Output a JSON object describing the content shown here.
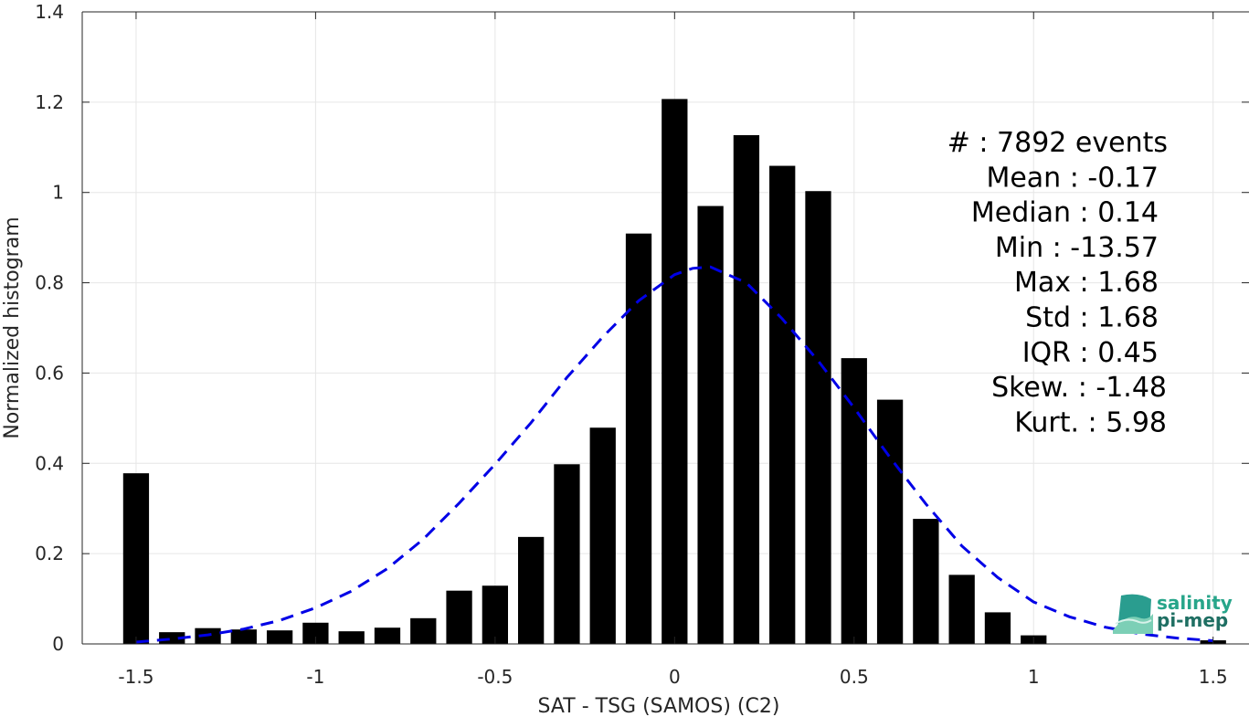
{
  "chart_data": {
    "type": "bar",
    "xlabel": "SAT - TSG (SAMOS) (C2)",
    "ylabel": "Normalized histogram",
    "xlim": [
      -1.65,
      1.6
    ],
    "ylim": [
      0,
      1.4
    ],
    "xticks": [
      -1.5,
      -1,
      -0.5,
      0,
      0.5,
      1,
      1.5
    ],
    "xtick_labels": [
      "-1.5",
      "-1",
      "-0.5",
      "0",
      "0.5",
      "1",
      "1.5"
    ],
    "yticks": [
      0,
      0.2,
      0.4,
      0.6,
      0.8,
      1,
      1.2,
      1.4
    ],
    "ytick_labels": [
      "0",
      "0.2",
      "0.4",
      "0.6",
      "0.8",
      "1",
      "1.2",
      "1.4"
    ],
    "grid": true,
    "bin_centers": [
      -1.5,
      -1.4,
      -1.3,
      -1.2,
      -1.1,
      -1.0,
      -0.9,
      -0.8,
      -0.7,
      -0.6,
      -0.5,
      -0.4,
      -0.3,
      -0.2,
      -0.1,
      0.0,
      0.1,
      0.2,
      0.3,
      0.4,
      0.5,
      0.6,
      0.7,
      0.8,
      0.9,
      1.0,
      1.1,
      1.2,
      1.3,
      1.5
    ],
    "values": [
      0.378,
      0.026,
      0.035,
      0.032,
      0.03,
      0.047,
      0.028,
      0.036,
      0.057,
      0.118,
      0.129,
      0.237,
      0.398,
      0.479,
      0.909,
      1.207,
      0.97,
      1.127,
      1.059,
      1.003,
      0.633,
      0.541,
      0.277,
      0.153,
      0.07,
      0.019,
      0.0,
      0.0,
      0.0,
      0.008
    ],
    "bar_color": "#000000",
    "fit": {
      "type": "gaussian",
      "style": "dashed",
      "color": "#0000e6",
      "x": [
        -1.5,
        -1.4,
        -1.3,
        -1.2,
        -1.1,
        -1.0,
        -0.9,
        -0.8,
        -0.7,
        -0.6,
        -0.5,
        -0.4,
        -0.3,
        -0.2,
        -0.1,
        0.0,
        0.05,
        0.1,
        0.2,
        0.3,
        0.4,
        0.5,
        0.6,
        0.7,
        0.8,
        0.9,
        1.0,
        1.1,
        1.2,
        1.3,
        1.4,
        1.5
      ],
      "y": [
        0.004,
        0.011,
        0.02,
        0.033,
        0.052,
        0.08,
        0.117,
        0.167,
        0.232,
        0.312,
        0.398,
        0.49,
        0.59,
        0.68,
        0.76,
        0.818,
        0.832,
        0.835,
        0.8,
        0.72,
        0.627,
        0.523,
        0.413,
        0.31,
        0.217,
        0.147,
        0.093,
        0.06,
        0.037,
        0.022,
        0.013,
        0.007
      ]
    },
    "stats": [
      "#  : 7892 events",
      "Mean : -0.17",
      "Median : 0.14",
      "Min : -13.57",
      "Max : 1.68",
      "Std : 1.68",
      "IQR : 0.45",
      "Skew. : -1.48",
      "Kurt. : 5.98"
    ],
    "logo": {
      "line1": "salinity",
      "line2": "pi-mep"
    }
  }
}
